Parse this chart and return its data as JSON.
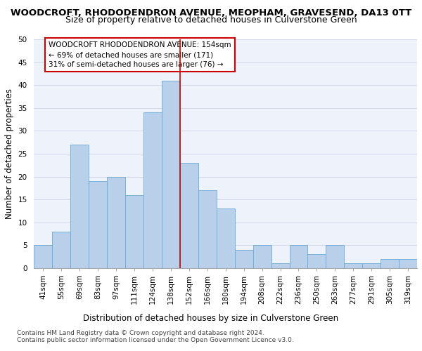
{
  "title": "WOODCROFT, RHODODENDRON AVENUE, MEOPHAM, GRAVESEND, DA13 0TT",
  "subtitle": "Size of property relative to detached houses in Culverstone Green",
  "xlabel": "Distribution of detached houses by size in Culverstone Green",
  "ylabel": "Number of detached properties",
  "categories": [
    "41sqm",
    "55sqm",
    "69sqm",
    "83sqm",
    "97sqm",
    "111sqm",
    "124sqm",
    "138sqm",
    "152sqm",
    "166sqm",
    "180sqm",
    "194sqm",
    "208sqm",
    "222sqm",
    "236sqm",
    "250sqm",
    "263sqm",
    "277sqm",
    "291sqm",
    "305sqm",
    "319sqm"
  ],
  "values": [
    5,
    8,
    27,
    19,
    20,
    16,
    34,
    41,
    23,
    17,
    13,
    4,
    5,
    1,
    5,
    3,
    5,
    1,
    1,
    2,
    2
  ],
  "bar_color": "#b8d0ea",
  "bar_edge_color": "#6aaad4",
  "grid_color": "#d0d8e8",
  "vline_x": 7.5,
  "vline_color": "#cc0000",
  "annotation_box_text": "WOODCROFT RHODODENDRON AVENUE: 154sqm\n← 69% of detached houses are smaller (171)\n31% of semi-detached houses are larger (76) →",
  "annotation_box_color": "#cc0000",
  "footnote1": "Contains HM Land Registry data © Crown copyright and database right 2024.",
  "footnote2": "Contains public sector information licensed under the Open Government Licence v3.0.",
  "ylim": [
    0,
    50
  ],
  "yticks": [
    0,
    5,
    10,
    15,
    20,
    25,
    30,
    35,
    40,
    45,
    50
  ],
  "bg_color": "#eef2fa",
  "title_fontsize": 9.5,
  "subtitle_fontsize": 9,
  "label_fontsize": 8.5,
  "tick_fontsize": 7.5,
  "footnote_fontsize": 6.5,
  "ann_fontsize": 7.5
}
